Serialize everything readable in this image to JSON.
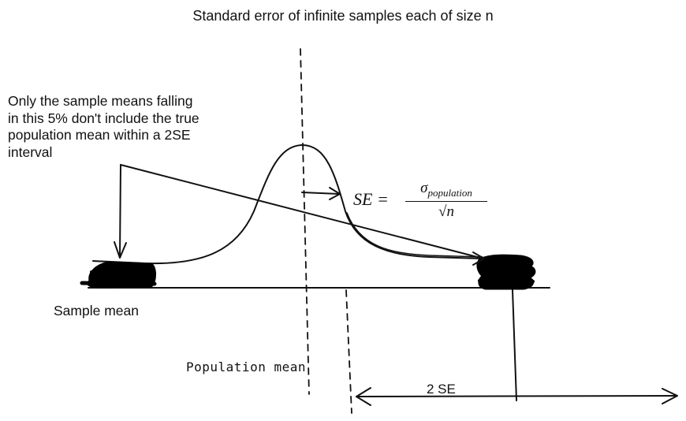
{
  "title": "Standard error of infinite samples each of size n",
  "annotation": {
    "lines": [
      "Only the sample means falling",
      "in this 5% don't include the true",
      "population mean within a 2SE",
      "interval"
    ]
  },
  "axis_label": "Sample mean",
  "population_mean_label": "Population mean",
  "interval_label": "2 SE",
  "formula": {
    "lhs": "SE =",
    "numerator_symbol": "σ",
    "numerator_subscript": "population",
    "denominator": "√n"
  },
  "colors": {
    "ink": "#111111",
    "fill": "#000000",
    "background": "#ffffff"
  }
}
